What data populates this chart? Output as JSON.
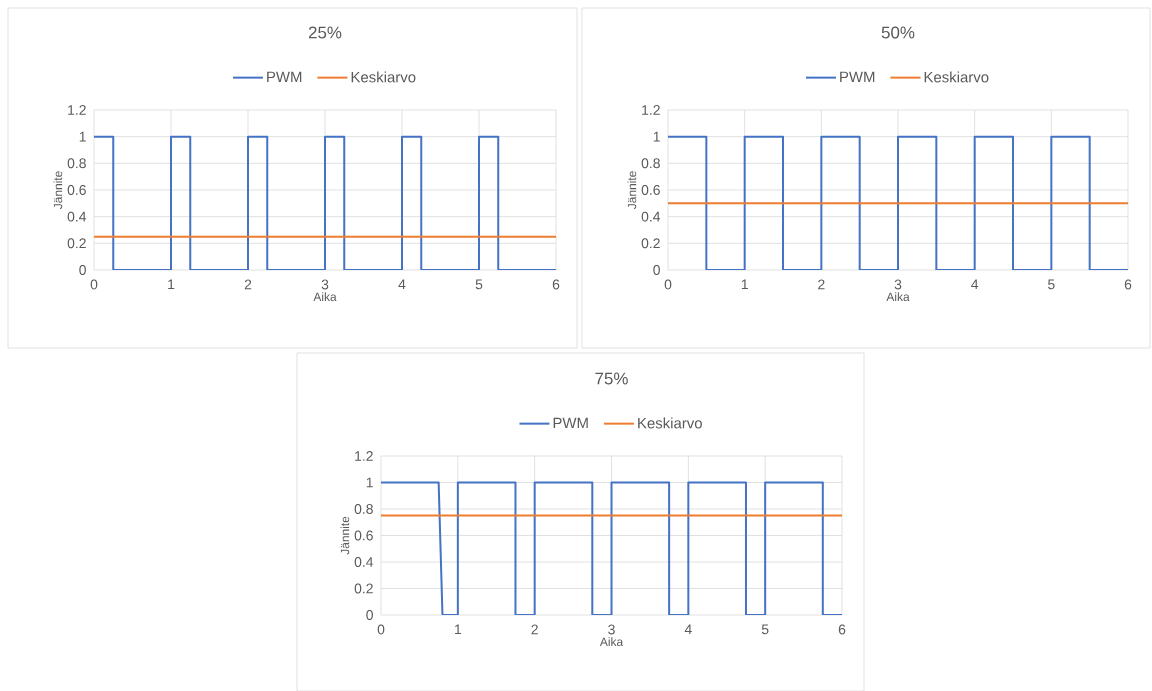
{
  "chart_data": [
    {
      "type": "line",
      "title": "25%",
      "xlabel": "Aika",
      "ylabel": "Jännite",
      "xlim": [
        0,
        6
      ],
      "ylim": [
        0,
        1.2
      ],
      "xticks": [
        0,
        1,
        2,
        3,
        4,
        5,
        6
      ],
      "yticks": [
        0,
        0.2,
        0.4,
        0.6,
        0.8,
        1,
        1.2
      ],
      "grid": true,
      "legend": "top",
      "series": [
        {
          "name": "PWM",
          "color": "#4472c4",
          "x": [
            0,
            0.25,
            0.25,
            1,
            1,
            1.25,
            1.25,
            2,
            2,
            2.25,
            2.25,
            3,
            3,
            3.25,
            3.25,
            4,
            4,
            4.25,
            4.25,
            5,
            5,
            5.25,
            5.25,
            6
          ],
          "values": [
            1,
            1,
            0,
            0,
            1,
            1,
            0,
            0,
            1,
            1,
            0,
            0,
            1,
            1,
            0,
            0,
            1,
            1,
            0,
            0,
            1,
            1,
            0,
            0
          ]
        },
        {
          "name": "Keskiarvo",
          "color": "#ed7d31",
          "x": [
            0,
            6
          ],
          "values": [
            0.25,
            0.25
          ]
        }
      ]
    },
    {
      "type": "line",
      "title": "50%",
      "xlabel": "Aika",
      "ylabel": "Jännite",
      "xlim": [
        0,
        6
      ],
      "ylim": [
        0,
        1.2
      ],
      "xticks": [
        0,
        1,
        2,
        3,
        4,
        5,
        6
      ],
      "yticks": [
        0,
        0.2,
        0.4,
        0.6,
        0.8,
        1,
        1.2
      ],
      "grid": true,
      "legend": "top",
      "series": [
        {
          "name": "PWM",
          "color": "#4472c4",
          "x": [
            0,
            0.5,
            0.5,
            1,
            1,
            1.5,
            1.5,
            2,
            2,
            2.5,
            2.5,
            3,
            3,
            3.5,
            3.5,
            4,
            4,
            4.5,
            4.5,
            5,
            5,
            5.5,
            5.5,
            6
          ],
          "values": [
            1,
            1,
            0,
            0,
            1,
            1,
            0,
            0,
            1,
            1,
            0,
            0,
            1,
            1,
            0,
            0,
            1,
            1,
            0,
            0,
            1,
            1,
            0,
            0
          ]
        },
        {
          "name": "Keskiarvo",
          "color": "#ed7d31",
          "x": [
            0,
            6
          ],
          "values": [
            0.5,
            0.5
          ]
        }
      ]
    },
    {
      "type": "line",
      "title": "75%",
      "xlabel": "Aika",
      "ylabel": "Jännite",
      "xlim": [
        0,
        6
      ],
      "ylim": [
        0,
        1.2
      ],
      "xticks": [
        0,
        1,
        2,
        3,
        4,
        5,
        6
      ],
      "yticks": [
        0,
        0.2,
        0.4,
        0.6,
        0.8,
        1,
        1.2
      ],
      "grid": true,
      "legend": "top",
      "series": [
        {
          "name": "PWM",
          "color": "#4472c4",
          "x": [
            0,
            0.75,
            0.8,
            1,
            1,
            1.75,
            1.75,
            2,
            2,
            2.75,
            2.75,
            3,
            3,
            3.75,
            3.75,
            4,
            4,
            4.75,
            4.75,
            5,
            5,
            5.75,
            5.75,
            6
          ],
          "values": [
            1,
            1,
            0,
            0,
            1,
            1,
            0,
            0,
            1,
            1,
            0,
            0,
            1,
            1,
            0,
            0,
            1,
            1,
            0,
            0,
            1,
            1,
            0,
            0
          ]
        },
        {
          "name": "Keskiarvo",
          "color": "#ed7d31",
          "x": [
            0,
            6
          ],
          "values": [
            0.75,
            0.75
          ]
        }
      ]
    }
  ]
}
